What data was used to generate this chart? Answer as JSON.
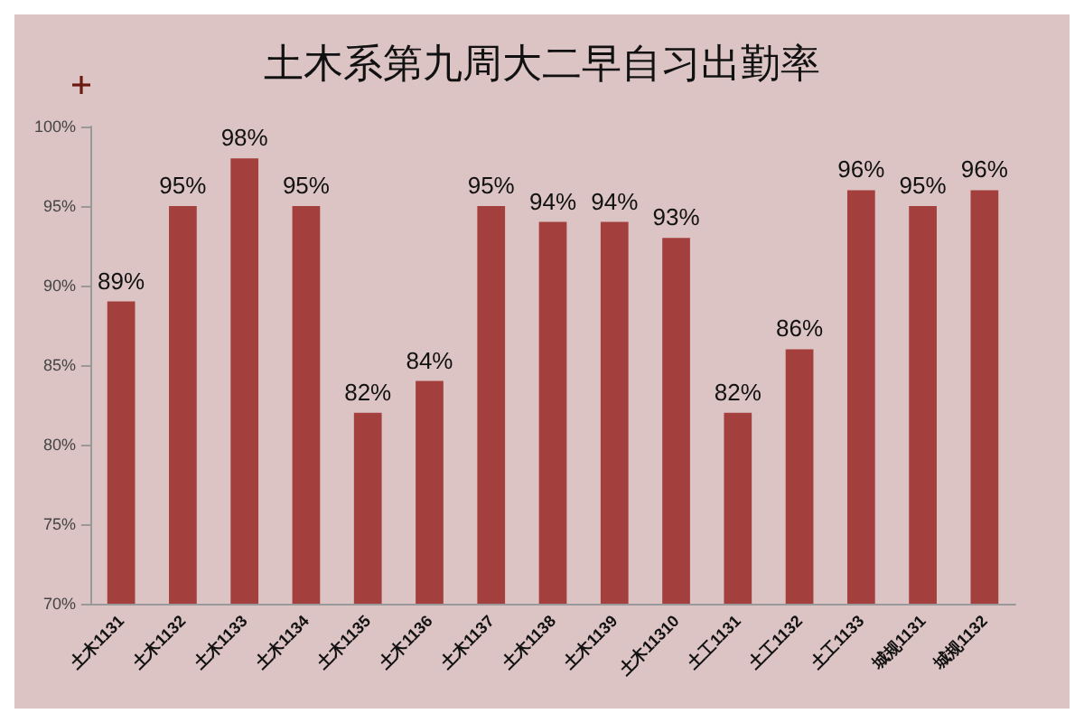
{
  "chart_data": {
    "type": "bar",
    "title": "土木系第九周大二早自习出勤率",
    "categories": [
      "土木1131",
      "土木1132",
      "土木1133",
      "土木1134",
      "土木1135",
      "土木1136",
      "土木1137",
      "土木1138",
      "土木1139",
      "土木11310",
      "土工1131",
      "土工1132",
      "土工1133",
      "城规1131",
      "城规1132"
    ],
    "values": [
      89,
      95,
      98,
      95,
      82,
      84,
      95,
      94,
      94,
      93,
      82,
      86,
      96,
      95,
      96
    ],
    "color": "#a3403d",
    "ylim": [
      70,
      100
    ],
    "yticks": [
      {
        "value": 70,
        "label": "70%"
      },
      {
        "value": 75,
        "label": "75%"
      },
      {
        "value": 80,
        "label": "80%"
      },
      {
        "value": 85,
        "label": "85%"
      },
      {
        "value": 90,
        "label": "90%"
      },
      {
        "value": 95,
        "label": "95%"
      },
      {
        "value": 100,
        "label": "100%"
      }
    ],
    "data_labels": true,
    "value_labels": [
      "89%",
      "95%",
      "98%",
      "95%",
      "82%",
      "84%",
      "95%",
      "94%",
      "94%",
      "93%",
      "82%",
      "86%",
      "96%",
      "95%",
      "96%"
    ],
    "grid": false
  }
}
